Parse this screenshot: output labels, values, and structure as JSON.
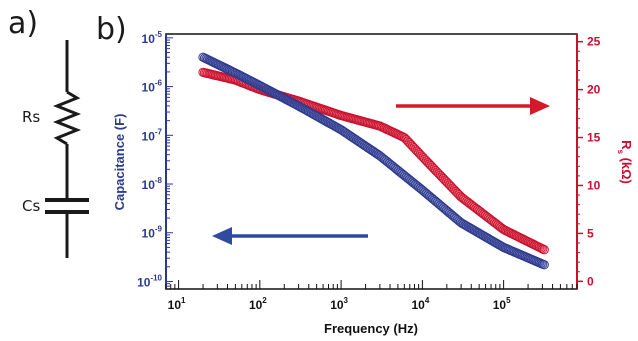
{
  "panels": {
    "a": "a)",
    "b": "b)"
  },
  "circuit": {
    "resistor_label": "Rs",
    "capacitor_label": "Cs"
  },
  "colors": {
    "capacitance": "#2d3a8c",
    "resistance": "#c8102e",
    "capacitance_fill": "#5561b0",
    "resistance_fill": "#e24a5c"
  },
  "chart_data": {
    "type": "scatter",
    "xlabel": "Frequency (Hz)",
    "xscale": "log",
    "xlim": [
      7,
      800000
    ],
    "x_ticks": [
      {
        "base": "10",
        "exp": "1",
        "value": 10
      },
      {
        "base": "10",
        "exp": "2",
        "value": 100
      },
      {
        "base": "10",
        "exp": "3",
        "value": 1000
      },
      {
        "base": "10",
        "exp": "4",
        "value": 10000
      },
      {
        "base": "10",
        "exp": "5",
        "value": 100000
      }
    ],
    "y_left": {
      "label": "Capacitance (F)",
      "scale": "log",
      "lim": [
        7e-11,
        1.2e-05
      ],
      "ticks": [
        {
          "base": "10",
          "exp": "-5",
          "value": 1e-05
        },
        {
          "base": "10",
          "exp": "-6",
          "value": 1e-06
        },
        {
          "base": "10",
          "exp": "-7",
          "value": 1e-07
        },
        {
          "base": "10",
          "exp": "-8",
          "value": 1e-08
        },
        {
          "base": "10",
          "exp": "-9",
          "value": 1e-09
        },
        {
          "base": "10",
          "exp": "-10",
          "value": 1e-10
        }
      ]
    },
    "y_right": {
      "label": "R",
      "label_sub": "s",
      "label_unit": " (kΩ)",
      "scale": "linear",
      "lim": [
        -0.8,
        25.8
      ],
      "ticks": [
        "0",
        "5",
        "10",
        "15",
        "20",
        "25"
      ]
    },
    "series": [
      {
        "name": "Capacitance",
        "axis": "left",
        "points": [
          [
            20,
            4e-06
          ],
          [
            50,
            1.9e-06
          ],
          [
            100,
            1.05e-06
          ],
          [
            300,
            4e-07
          ],
          [
            1000,
            1.3e-07
          ],
          [
            3000,
            3.8e-08
          ],
          [
            10000,
            7.5e-09
          ],
          [
            30000,
            1.6e-09
          ],
          [
            100000,
            5e-10
          ],
          [
            316000,
            2.2e-10
          ]
        ]
      },
      {
        "name": "Rs",
        "axis": "right",
        "points": [
          [
            20,
            21.8
          ],
          [
            50,
            21.0
          ],
          [
            100,
            20.0
          ],
          [
            300,
            18.8
          ],
          [
            1000,
            17.3
          ],
          [
            3000,
            16.2
          ],
          [
            6000,
            15.0
          ],
          [
            10000,
            13.0
          ],
          [
            30000,
            8.8
          ],
          [
            100000,
            5.4
          ],
          [
            316000,
            3.3
          ]
        ]
      }
    ],
    "arrows": [
      {
        "points_to": "left axis",
        "color": "#2d3a8c"
      },
      {
        "points_to": "right axis",
        "color": "#c8102e"
      }
    ]
  }
}
